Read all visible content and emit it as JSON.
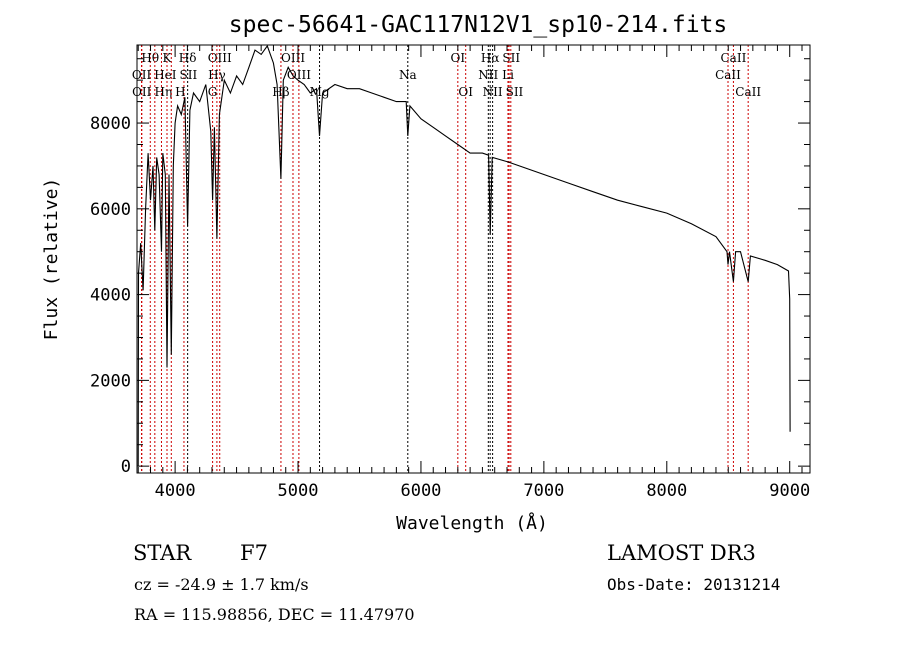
{
  "chart_data": {
    "type": "line",
    "title": "spec-56641-GAC117N12V1_sp10-214.fits",
    "xlabel": "Wavelength (Å)",
    "ylabel": "Flux (relative)",
    "xlim": [
      3690,
      9165
    ],
    "ylim": [
      -160,
      9820
    ],
    "xticks": [
      4000,
      5000,
      6000,
      7000,
      8000,
      9000
    ],
    "xtick_labels": [
      "4000",
      "5000",
      "6000",
      "7000",
      "8000",
      "9000"
    ],
    "yticks": [
      0,
      2000,
      4000,
      6000,
      8000
    ],
    "ytick_labels": [
      "0",
      "2000",
      "4000",
      "6000",
      "8000"
    ],
    "x_minor_step": 100,
    "y_minor_step": 500,
    "grid": false,
    "series": [
      {
        "name": "spectrum",
        "color": "#000000",
        "points": [
          [
            3700,
            0
          ],
          [
            3702,
            4500
          ],
          [
            3720,
            5200
          ],
          [
            3740,
            4100
          ],
          [
            3760,
            6000
          ],
          [
            3780,
            7300
          ],
          [
            3800,
            6200
          ],
          [
            3820,
            7000
          ],
          [
            3835,
            5500
          ],
          [
            3850,
            7200
          ],
          [
            3870,
            6800
          ],
          [
            3889,
            5000
          ],
          [
            3900,
            7300
          ],
          [
            3920,
            6800
          ],
          [
            3934,
            2300
          ],
          [
            3950,
            6800
          ],
          [
            3969,
            2600
          ],
          [
            3985,
            7000
          ],
          [
            4000,
            8000
          ],
          [
            4020,
            8400
          ],
          [
            4050,
            8200
          ],
          [
            4080,
            8600
          ],
          [
            4102,
            5600
          ],
          [
            4120,
            8300
          ],
          [
            4150,
            8700
          ],
          [
            4200,
            8500
          ],
          [
            4250,
            8900
          ],
          [
            4290,
            7800
          ],
          [
            4305,
            6200
          ],
          [
            4320,
            7900
          ],
          [
            4340,
            5300
          ],
          [
            4360,
            8200
          ],
          [
            4400,
            9000
          ],
          [
            4450,
            8700
          ],
          [
            4500,
            9100
          ],
          [
            4550,
            8900
          ],
          [
            4600,
            9300
          ],
          [
            4650,
            9700
          ],
          [
            4700,
            9600
          ],
          [
            4750,
            9800
          ],
          [
            4800,
            9400
          ],
          [
            4830,
            8900
          ],
          [
            4861,
            6700
          ],
          [
            4880,
            9000
          ],
          [
            4920,
            9300
          ],
          [
            4960,
            9100
          ],
          [
            5000,
            9000
          ],
          [
            5050,
            8900
          ],
          [
            5100,
            8700
          ],
          [
            5150,
            8800
          ],
          [
            5175,
            7700
          ],
          [
            5200,
            8700
          ],
          [
            5300,
            8900
          ],
          [
            5400,
            8800
          ],
          [
            5500,
            8800
          ],
          [
            5600,
            8700
          ],
          [
            5700,
            8600
          ],
          [
            5800,
            8500
          ],
          [
            5880,
            8500
          ],
          [
            5893,
            7700
          ],
          [
            5910,
            8400
          ],
          [
            6000,
            8100
          ],
          [
            6100,
            7900
          ],
          [
            6200,
            7700
          ],
          [
            6300,
            7500
          ],
          [
            6400,
            7300
          ],
          [
            6500,
            7300
          ],
          [
            6550,
            7250
          ],
          [
            6563,
            5400
          ],
          [
            6580,
            7200
          ],
          [
            6700,
            7100
          ],
          [
            6800,
            7000
          ],
          [
            7000,
            6800
          ],
          [
            7200,
            6600
          ],
          [
            7400,
            6400
          ],
          [
            7600,
            6200
          ],
          [
            7800,
            6050
          ],
          [
            8000,
            5900
          ],
          [
            8200,
            5650
          ],
          [
            8400,
            5350
          ],
          [
            8490,
            5000
          ],
          [
            8498,
            4700
          ],
          [
            8510,
            5000
          ],
          [
            8542,
            4300
          ],
          [
            8560,
            5000
          ],
          [
            8600,
            5000
          ],
          [
            8662,
            4300
          ],
          [
            8680,
            4900
          ],
          [
            8800,
            4800
          ],
          [
            8900,
            4700
          ],
          [
            8990,
            4550
          ],
          [
            9000,
            3900
          ],
          [
            9003,
            800
          ]
        ]
      }
    ],
    "line_markers": [
      {
        "label": "Hθ",
        "wavelength": 3798,
        "row": 1,
        "color": "#cc0000"
      },
      {
        "label": "K",
        "wavelength": 3934,
        "row": 1,
        "color": "#cc0000"
      },
      {
        "label": "Hδ",
        "wavelength": 4102,
        "row": 1,
        "color": "#000000"
      },
      {
        "label": "OIII",
        "wavelength": 4363,
        "row": 1,
        "color": "#cc0000"
      },
      {
        "label": "OIII",
        "wavelength": 4959,
        "row": 1,
        "color": "#cc0000"
      },
      {
        "label": "OI",
        "wavelength": 6300,
        "row": 1,
        "color": "#cc0000"
      },
      {
        "label": "Hα",
        "wavelength": 6563,
        "row": 1,
        "color": "#000000"
      },
      {
        "label": "SII",
        "wavelength": 6717,
        "row": 1,
        "color": "#cc0000"
      },
      {
        "label": "CaII",
        "wavelength": 8542,
        "row": 1,
        "color": "#cc0000"
      },
      {
        "label": "OII",
        "wavelength": 3727,
        "row": 2,
        "color": "#cc0000"
      },
      {
        "label": "HeI",
        "wavelength": 3889,
        "row": 2,
        "color": "#cc0000"
      },
      {
        "label": "SII",
        "wavelength": 4072,
        "row": 2,
        "color": "#cc0000"
      },
      {
        "label": "Hγ",
        "wavelength": 4340,
        "row": 2,
        "color": "#cc0000"
      },
      {
        "label": "OIII",
        "wavelength": 5007,
        "row": 2,
        "color": "#cc0000"
      },
      {
        "label": "Na",
        "wavelength": 5893,
        "row": 2,
        "color": "#000000"
      },
      {
        "label": "NII",
        "wavelength": 6548,
        "row": 2,
        "color": "#000000"
      },
      {
        "label": "Li",
        "wavelength": 6708,
        "row": 2,
        "color": "#cc0000"
      },
      {
        "label": "CaII",
        "wavelength": 8498,
        "row": 2,
        "color": "#cc0000"
      },
      {
        "label": "OII",
        "wavelength": 3729,
        "row": 3,
        "color": "#cc0000"
      },
      {
        "label": "Hη",
        "wavelength": 3835,
        "row": 3,
        "color": "#cc0000"
      },
      {
        "label": "H",
        "wavelength": 3969,
        "row": 3,
        "color": "#cc0000"
      },
      {
        "label": "G",
        "wavelength": 4305,
        "row": 3,
        "color": "#cc0000"
      },
      {
        "label": "Hβ",
        "wavelength": 4861,
        "row": 3,
        "color": "#cc0000"
      },
      {
        "label": "Mg",
        "wavelength": 5175,
        "row": 3,
        "color": "#000000"
      },
      {
        "label": "OI",
        "wavelength": 6364,
        "row": 3,
        "color": "#cc0000"
      },
      {
        "label": "NII",
        "wavelength": 6583,
        "row": 3,
        "color": "#000000"
      },
      {
        "label": "SII",
        "wavelength": 6731,
        "row": 3,
        "color": "#cc0000"
      },
      {
        "label": "CaII",
        "wavelength": 8662,
        "row": 3,
        "color": "#cc0000"
      }
    ],
    "annotations": {
      "class": "STAR",
      "subclass": "F7",
      "survey": "LAMOST DR3",
      "cz": "cz = -24.9 ± 1.7 km/s",
      "obs_date": "Obs-Date: 20131214",
      "coords": "RA = 115.98856, DEC =  11.47970"
    }
  }
}
